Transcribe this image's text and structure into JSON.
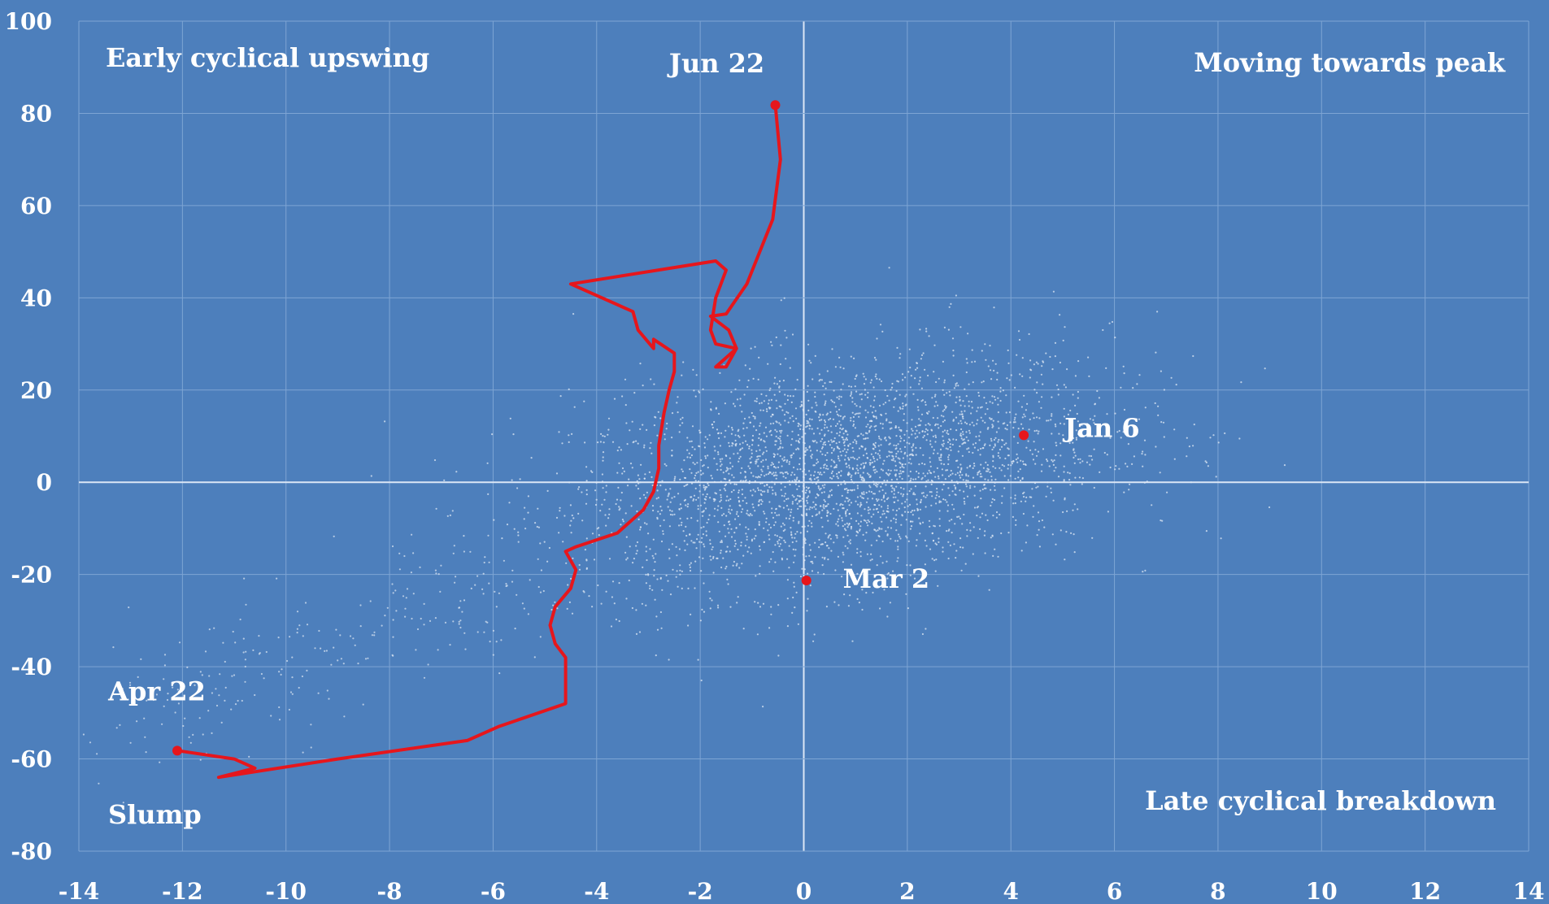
{
  "colors": {
    "background": "#4d7fbc",
    "grid": "#7ea5d4",
    "zero_line": "#dbe6f5",
    "scatter": "#dfe8f4",
    "path": "#e6161c",
    "text": "#ffffff"
  },
  "chart_data": {
    "type": "scatter",
    "title": "",
    "xlabel": "",
    "ylabel": "",
    "xlim": [
      -14,
      14
    ],
    "ylim": [
      -80,
      100
    ],
    "x_ticks": [
      -14,
      -12,
      -10,
      -8,
      -6,
      -4,
      -2,
      0,
      2,
      4,
      6,
      8,
      10,
      12,
      14
    ],
    "y_ticks": [
      -80,
      -60,
      -40,
      -20,
      0,
      20,
      40,
      60,
      80,
      100
    ],
    "x_tick_labels": [
      "-14",
      "-12",
      "-10",
      "-8",
      "-6",
      "-4",
      "-2",
      "0",
      "2",
      "4",
      "6",
      "8",
      "10",
      "12",
      "14"
    ],
    "y_tick_labels": [
      "-80",
      "-60",
      "-40",
      "-20",
      "0",
      "20",
      "40",
      "60",
      "80",
      "100"
    ],
    "grid": true,
    "zero_lines": true,
    "quadrant_labels": {
      "top_left": "Early cyclical upswing",
      "top_right": "Moving towards peak",
      "bottom_left": "Slump",
      "bottom_right": "Late cyclical breakdown"
    },
    "highlighted_points": [
      {
        "label": "Jan 6",
        "x": 4.25,
        "y": 10.2
      },
      {
        "label": "Mar 2",
        "x": 0.05,
        "y": -21.3
      },
      {
        "label": "Apr 22",
        "x": -12.1,
        "y": -58.2
      },
      {
        "label": "Jun 22",
        "x": -0.55,
        "y": 81.8
      }
    ],
    "path_series": {
      "x": [
        -12.1,
        -11.0,
        -10.6,
        -11.3,
        -9.0,
        -6.5,
        -5.9,
        -4.6,
        -4.6,
        -4.8,
        -4.9,
        -4.8,
        -4.5,
        -4.4,
        -4.6,
        -4.4,
        -3.6,
        -3.1,
        -2.9,
        -2.8,
        -2.8,
        -2.7,
        -2.6,
        -2.5,
        -2.5,
        -2.9,
        -2.9,
        -3.2,
        -3.3,
        -4.5,
        -1.7,
        -1.5,
        -1.7,
        -1.8,
        -1.7,
        -1.3,
        -1.5,
        -1.7,
        -1.3,
        -1.45,
        -1.8,
        -1.5,
        -1.1,
        -0.6,
        -0.45,
        -0.55
      ],
      "y": [
        -58.2,
        -60.0,
        -62.0,
        -64.0,
        -60.0,
        -56.0,
        -53.0,
        -48.0,
        -38.0,
        -35.0,
        -31.0,
        -27.0,
        -23.0,
        -19.0,
        -15.0,
        -14.0,
        -11.0,
        -6.0,
        -2.0,
        3.0,
        8.0,
        15.0,
        20.0,
        24.0,
        28.0,
        31.0,
        29.0,
        33.0,
        37.0,
        43.0,
        48.0,
        46.0,
        40.0,
        33.0,
        30.0,
        29.0,
        25.0,
        25.0,
        29.0,
        33.0,
        36.0,
        36.5,
        43.0,
        57.0,
        70.0,
        81.8
      ]
    },
    "background_cloud": {
      "description": "",
      "count": 3200,
      "x_mean": 0.7,
      "x_sd": 2.6,
      "y_mean": 2.0,
      "y_sd": 12.0
    }
  }
}
